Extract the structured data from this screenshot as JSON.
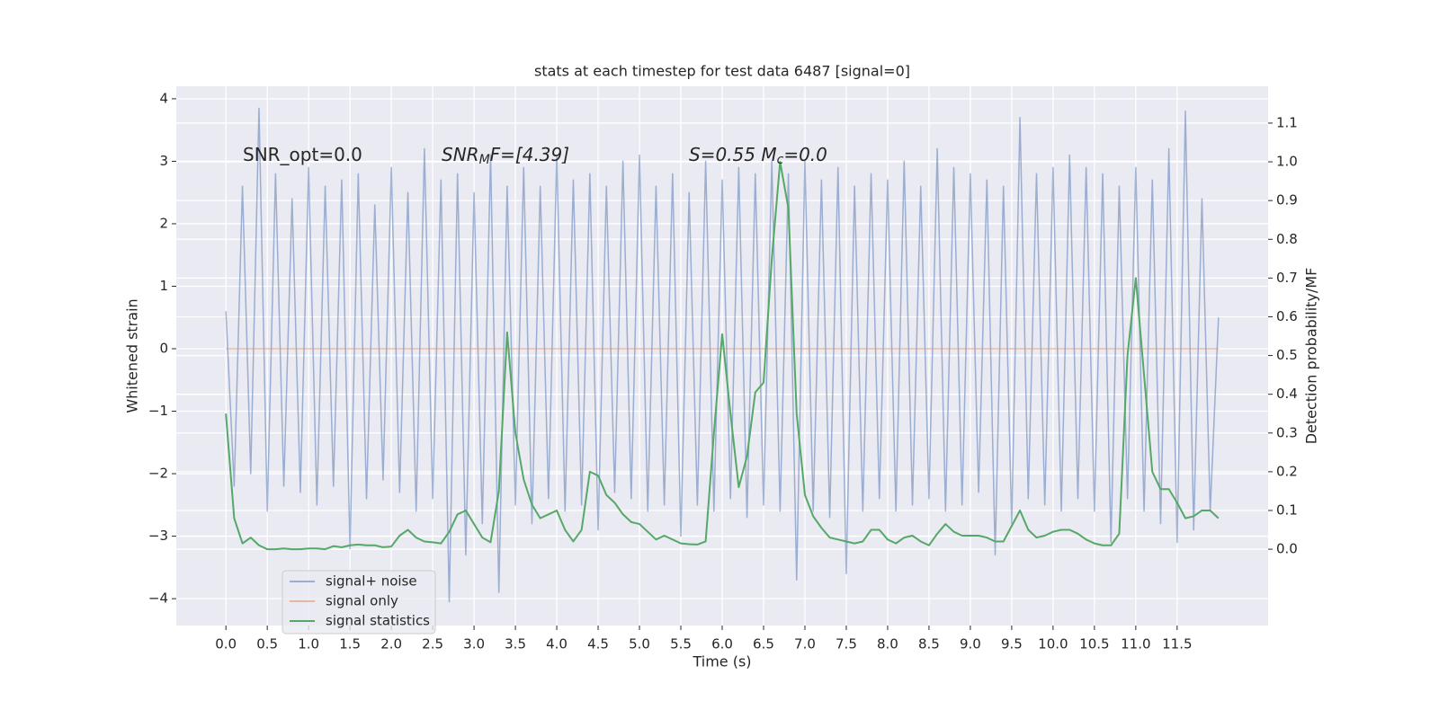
{
  "chart_data": {
    "type": "line",
    "title": "stats at each timestep for test data 6487 [signal=0]",
    "xlabel": "Time (s)",
    "ylabel": "Whitened strain",
    "y2label": "Detection probability/MF",
    "annotations": [
      [
        "SNR_opt=0.0"
      ],
      [
        "SNR",
        "M",
        "F=[4.39]"
      ],
      [
        "S=0.55   M",
        "c",
        "=0.0"
      ]
    ],
    "x": [
      0.0,
      0.1,
      0.2,
      0.3,
      0.4,
      0.5,
      0.6,
      0.7,
      0.8,
      0.9,
      1.0,
      1.1,
      1.2,
      1.3,
      1.4,
      1.5,
      1.6,
      1.7,
      1.8,
      1.9,
      2.0,
      2.1,
      2.2,
      2.3,
      2.4,
      2.5,
      2.6,
      2.7,
      2.8,
      2.9,
      3.0,
      3.1,
      3.2,
      3.3,
      3.4,
      3.5,
      3.6,
      3.7,
      3.8,
      3.9,
      4.0,
      4.1,
      4.2,
      4.3,
      4.4,
      4.5,
      4.6,
      4.7,
      4.8,
      4.9,
      5.0,
      5.1,
      5.2,
      5.3,
      5.4,
      5.5,
      5.6,
      5.7,
      5.8,
      5.9,
      6.0,
      6.1,
      6.2,
      6.3,
      6.4,
      6.5,
      6.6,
      6.7,
      6.8,
      6.9,
      7.0,
      7.1,
      7.2,
      7.3,
      7.4,
      7.5,
      7.6,
      7.7,
      7.8,
      7.9,
      8.0,
      8.1,
      8.2,
      8.3,
      8.4,
      8.5,
      8.6,
      8.7,
      8.8,
      8.9,
      9.0,
      9.1,
      9.2,
      9.3,
      9.4,
      9.5,
      9.6,
      9.7,
      9.8,
      9.9,
      10.0,
      10.1,
      10.2,
      10.3,
      10.4,
      10.5,
      10.6,
      10.7,
      10.8,
      10.9,
      11.0,
      11.1,
      11.2,
      11.3,
      11.4,
      11.5,
      11.6,
      11.7,
      11.8,
      11.9,
      12.0
    ],
    "series": [
      {
        "name": "signal+ noise",
        "color": "#4c72b0",
        "alpha": 0.5,
        "axis": "y",
        "values": [
          0.6,
          -2.2,
          2.6,
          -2.0,
          3.85,
          -2.6,
          2.8,
          -2.2,
          2.4,
          -2.3,
          2.9,
          -2.5,
          2.6,
          -2.2,
          2.7,
          -3.2,
          2.8,
          -2.4,
          2.3,
          -2.1,
          2.9,
          -2.3,
          2.5,
          -2.6,
          3.2,
          -2.4,
          2.7,
          -4.05,
          2.8,
          -3.3,
          2.5,
          -2.8,
          3.1,
          -3.9,
          2.6,
          -2.5,
          2.9,
          -2.8,
          2.6,
          -2.4,
          3.1,
          -2.6,
          2.7,
          -2.5,
          2.8,
          -2.9,
          2.6,
          -2.3,
          3.0,
          -2.4,
          3.1,
          -2.6,
          2.6,
          -2.5,
          2.8,
          -3.0,
          2.5,
          -2.5,
          3.0,
          -2.6,
          2.7,
          -2.4,
          2.9,
          -2.7,
          2.8,
          -2.5,
          3.0,
          -2.6,
          2.8,
          -3.7,
          3.0,
          -2.6,
          2.7,
          -2.7,
          2.9,
          -3.6,
          2.6,
          -2.6,
          2.8,
          -2.4,
          2.7,
          -2.6,
          3.0,
          -2.5,
          2.6,
          -2.4,
          3.2,
          -2.6,
          2.9,
          -2.5,
          2.8,
          -2.3,
          2.7,
          -3.3,
          2.6,
          -2.8,
          3.7,
          -2.4,
          2.8,
          -2.5,
          2.9,
          -2.6,
          3.1,
          -2.4,
          2.9,
          -2.6,
          2.8,
          -3.1,
          2.6,
          -2.4,
          2.9,
          -2.6,
          2.7,
          -2.8,
          3.2,
          -3.1,
          3.8,
          -2.9,
          2.4,
          -2.6,
          0.5
        ]
      },
      {
        "name": "signal only",
        "color": "#dd8452",
        "alpha": 0.5,
        "axis": "y",
        "values": [
          0,
          0,
          0,
          0,
          0,
          0,
          0,
          0,
          0,
          0,
          0,
          0,
          0,
          0,
          0,
          0,
          0,
          0,
          0,
          0,
          0,
          0,
          0,
          0,
          0,
          0,
          0,
          0,
          0,
          0,
          0,
          0,
          0,
          0,
          0,
          0,
          0,
          0,
          0,
          0,
          0,
          0,
          0,
          0,
          0,
          0,
          0,
          0,
          0,
          0,
          0,
          0,
          0,
          0,
          0,
          0,
          0,
          0,
          0,
          0,
          0,
          0,
          0,
          0,
          0,
          0,
          0,
          0,
          0,
          0,
          0,
          0,
          0,
          0,
          0,
          0,
          0,
          0,
          0,
          0,
          0,
          0,
          0,
          0,
          0,
          0,
          0,
          0,
          0,
          0,
          0,
          0,
          0,
          0,
          0,
          0,
          0,
          0,
          0,
          0,
          0,
          0,
          0,
          0,
          0,
          0,
          0,
          0,
          0,
          0,
          0,
          0,
          0,
          0,
          0,
          0,
          0,
          0,
          0,
          0,
          0
        ]
      },
      {
        "name": "signal statistics",
        "color": "#55a868",
        "alpha": 1,
        "axis": "y2",
        "values": [
          0.35,
          0.08,
          0.015,
          0.03,
          0.01,
          0.0,
          0.0,
          0.002,
          0.0,
          0.0,
          0.002,
          0.002,
          0.0,
          0.008,
          0.005,
          0.01,
          0.012,
          0.01,
          0.01,
          0.005,
          0.007,
          0.035,
          0.05,
          0.03,
          0.02,
          0.018,
          0.015,
          0.045,
          0.09,
          0.1,
          0.065,
          0.03,
          0.018,
          0.15,
          0.56,
          0.3,
          0.18,
          0.115,
          0.08,
          0.09,
          0.1,
          0.05,
          0.02,
          0.05,
          0.2,
          0.19,
          0.14,
          0.12,
          0.09,
          0.07,
          0.065,
          0.045,
          0.025,
          0.035,
          0.025,
          0.015,
          0.013,
          0.012,
          0.02,
          0.3,
          0.555,
          0.35,
          0.16,
          0.24,
          0.405,
          0.43,
          0.75,
          1.0,
          0.88,
          0.35,
          0.14,
          0.085,
          0.055,
          0.03,
          0.025,
          0.02,
          0.015,
          0.02,
          0.05,
          0.05,
          0.025,
          0.015,
          0.03,
          0.035,
          0.02,
          0.01,
          0.04,
          0.065,
          0.045,
          0.035,
          0.035,
          0.035,
          0.03,
          0.02,
          0.02,
          0.06,
          0.1,
          0.05,
          0.03,
          0.035,
          0.045,
          0.05,
          0.05,
          0.04,
          0.025,
          0.015,
          0.01,
          0.01,
          0.04,
          0.5,
          0.7,
          0.45,
          0.2,
          0.155,
          0.155,
          0.12,
          0.08,
          0.085,
          0.1,
          0.1,
          0.08
        ]
      }
    ],
    "xlim": [
      -0.6,
      12.6
    ],
    "xticks": [
      {
        "value": 0,
        "label": "0.0"
      },
      0.5,
      {
        "value": 1,
        "label": "1.0"
      },
      1.5,
      {
        "value": 2,
        "label": "2.0"
      },
      2.5,
      {
        "value": 3,
        "label": "3.0"
      },
      3.5,
      {
        "value": 4,
        "label": "4.0"
      },
      4.5,
      {
        "value": 5,
        "label": "5.0"
      },
      5.5,
      {
        "value": 6,
        "label": "6.0"
      },
      6.5,
      {
        "value": 7,
        "label": "7.0"
      },
      7.5,
      {
        "value": 8,
        "label": "8.0"
      },
      8.5,
      {
        "value": 9,
        "label": "9.0"
      },
      9.5,
      {
        "value": 10,
        "label": "10.0"
      },
      10.5,
      {
        "value": 11,
        "label": "11.0"
      },
      11.5
    ],
    "ylim": [
      -4.43,
      4.2
    ],
    "yticks": [
      {
        "value": -4,
        "label": "−4"
      },
      {
        "value": -3,
        "label": "−3"
      },
      {
        "value": -2,
        "label": "−2"
      },
      {
        "value": -1,
        "label": "−1"
      },
      0,
      1,
      2,
      3,
      4
    ],
    "y2lim": [
      -0.197,
      1.195
    ],
    "y2ticks": [
      {
        "value": 0,
        "label": "0.0"
      },
      0.1,
      0.2,
      0.3,
      0.4,
      0.5,
      0.6,
      0.7,
      0.8,
      0.9,
      {
        "value": 1,
        "label": "1.0"
      },
      1.1
    ],
    "grid": true,
    "legend": "lower left"
  }
}
